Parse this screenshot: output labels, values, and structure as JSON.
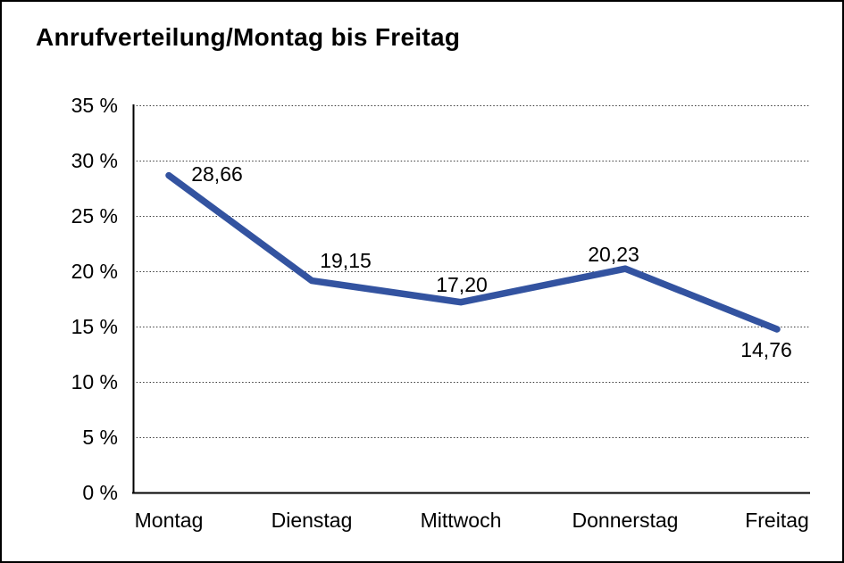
{
  "title": "Anrufverteilung/Montag bis Freitag",
  "chart_data": {
    "type": "line",
    "title": "Anrufverteilung/Montag bis Freitag",
    "categories": [
      "Montag",
      "Dienstag",
      "Mittwoch",
      "Donnerstag",
      "Freitag"
    ],
    "values": [
      28.66,
      19.15,
      17.2,
      20.23,
      14.76
    ],
    "data_labels": [
      "28,66",
      "19,15",
      "17,20",
      "20,23",
      "14,76"
    ],
    "xlabel": "",
    "ylabel": "",
    "ylim": [
      0,
      35
    ],
    "ytick_step": 5,
    "ytick_labels": [
      "0 %",
      "5 %",
      "10 %",
      "15 %",
      "20 %",
      "25 %",
      "30 %",
      "35 %"
    ],
    "grid": "horizontal-dotted",
    "legend": "none",
    "line_color": "#3353A0",
    "axis_color": "#000000",
    "gridline_color": "#3a3a3a",
    "text_color": "#000000",
    "background_color": "#ffffff"
  }
}
